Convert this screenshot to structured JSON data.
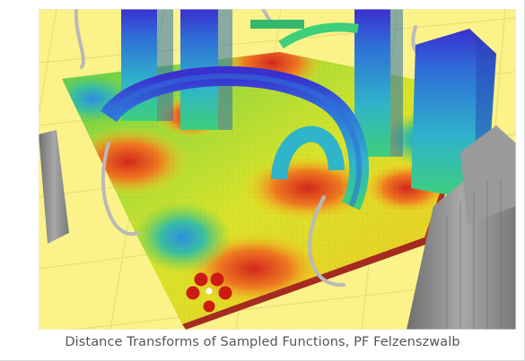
{
  "caption": "Distance Transforms of Sampled Functions, PF Felzenszwalb",
  "colors": {
    "background_floor": "#fbf28a",
    "far": "#d4281e",
    "mid": "#f0e020",
    "near": "#34c24a",
    "zero": "#2f8fe0",
    "pillar_base": "#40c9a0",
    "pillar_top": "#3a2fcf",
    "grey_blocks": "#8e8e8e",
    "tube": "#b9b9b9"
  },
  "icons": {
    "marker": "four-red-dots-icon"
  }
}
